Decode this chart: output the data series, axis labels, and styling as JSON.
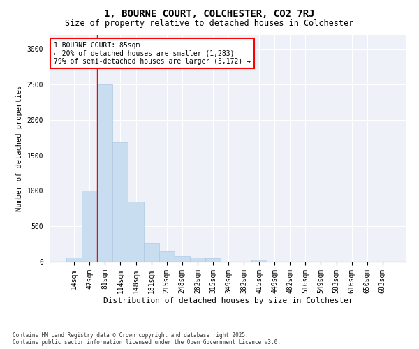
{
  "title": "1, BOURNE COURT, COLCHESTER, CO2 7RJ",
  "subtitle": "Size of property relative to detached houses in Colchester",
  "xlabel": "Distribution of detached houses by size in Colchester",
  "ylabel": "Number of detached properties",
  "categories": [
    "14sqm",
    "47sqm",
    "81sqm",
    "114sqm",
    "148sqm",
    "181sqm",
    "215sqm",
    "248sqm",
    "282sqm",
    "315sqm",
    "349sqm",
    "382sqm",
    "415sqm",
    "449sqm",
    "482sqm",
    "516sqm",
    "549sqm",
    "583sqm",
    "616sqm",
    "650sqm",
    "683sqm"
  ],
  "values": [
    55,
    1000,
    2500,
    1680,
    850,
    270,
    150,
    75,
    55,
    45,
    0,
    0,
    30,
    0,
    0,
    0,
    0,
    0,
    0,
    0,
    0
  ],
  "bar_color": "#c9ddf0",
  "bar_edge_color": "#aec8e0",
  "vline_index": 2,
  "annotation_text": "1 BOURNE COURT: 85sqm\n← 20% of detached houses are smaller (1,283)\n79% of semi-detached houses are larger (5,172) →",
  "annotation_box_color": "white",
  "annotation_box_edgecolor": "red",
  "vline_color": "red",
  "ylim": [
    0,
    3200
  ],
  "yticks": [
    0,
    500,
    1000,
    1500,
    2000,
    2500,
    3000
  ],
  "background_color": "#eef2f8",
  "grid_color": "white",
  "footer_line1": "Contains HM Land Registry data © Crown copyright and database right 2025.",
  "footer_line2": "Contains public sector information licensed under the Open Government Licence v3.0.",
  "title_fontsize": 10,
  "subtitle_fontsize": 8.5,
  "tick_fontsize": 7,
  "xlabel_fontsize": 8,
  "ylabel_fontsize": 7.5,
  "footer_fontsize": 5.5,
  "annot_fontsize": 7
}
